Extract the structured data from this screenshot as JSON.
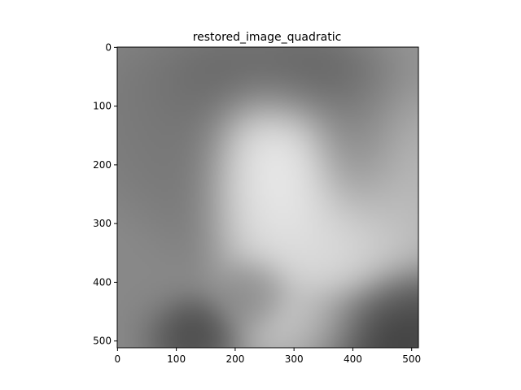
{
  "chart_data": {
    "type": "heatmap",
    "title": "restored_image_quadratic",
    "xlabel": "",
    "ylabel": "",
    "xlim": [
      0,
      511
    ],
    "ylim": [
      511,
      0
    ],
    "x_ticks": [
      0,
      100,
      200,
      300,
      400,
      500
    ],
    "y_ticks": [
      0,
      100,
      200,
      300,
      400,
      500
    ],
    "colormap": "gray",
    "grid": false,
    "image_size": [
      512,
      512
    ],
    "base_intensity": 0.58,
    "intensity_features": [
      {
        "x": 260,
        "y": 190,
        "rx": 60,
        "ry": 70,
        "v": 1.0
      },
      {
        "x": 310,
        "y": 270,
        "rx": 70,
        "ry": 90,
        "v": 0.95
      },
      {
        "x": 240,
        "y": 240,
        "rx": 50,
        "ry": 80,
        "v": 0.9
      },
      {
        "x": 390,
        "y": 350,
        "rx": 60,
        "ry": 50,
        "v": 0.9
      },
      {
        "x": 330,
        "y": 480,
        "rx": 60,
        "ry": 40,
        "v": 0.92
      },
      {
        "x": 470,
        "y": 260,
        "rx": 60,
        "ry": 120,
        "v": 0.78
      },
      {
        "x": 280,
        "y": 60,
        "rx": 110,
        "ry": 50,
        "v": 0.3
      },
      {
        "x": 140,
        "y": 180,
        "rx": 50,
        "ry": 110,
        "v": 0.42
      },
      {
        "x": 400,
        "y": 160,
        "rx": 50,
        "ry": 70,
        "v": 0.42
      },
      {
        "x": 40,
        "y": 130,
        "rx": 60,
        "ry": 100,
        "v": 0.45
      },
      {
        "x": 20,
        "y": 430,
        "rx": 50,
        "ry": 70,
        "v": 0.52
      },
      {
        "x": 440,
        "y": 495,
        "rx": 80,
        "ry": 45,
        "v": 0.08
      },
      {
        "x": 490,
        "y": 440,
        "rx": 50,
        "ry": 40,
        "v": 0.2
      },
      {
        "x": 120,
        "y": 490,
        "rx": 45,
        "ry": 35,
        "v": 0.22
      },
      {
        "x": 230,
        "y": 420,
        "rx": 35,
        "ry": 35,
        "v": 0.5
      }
    ]
  }
}
